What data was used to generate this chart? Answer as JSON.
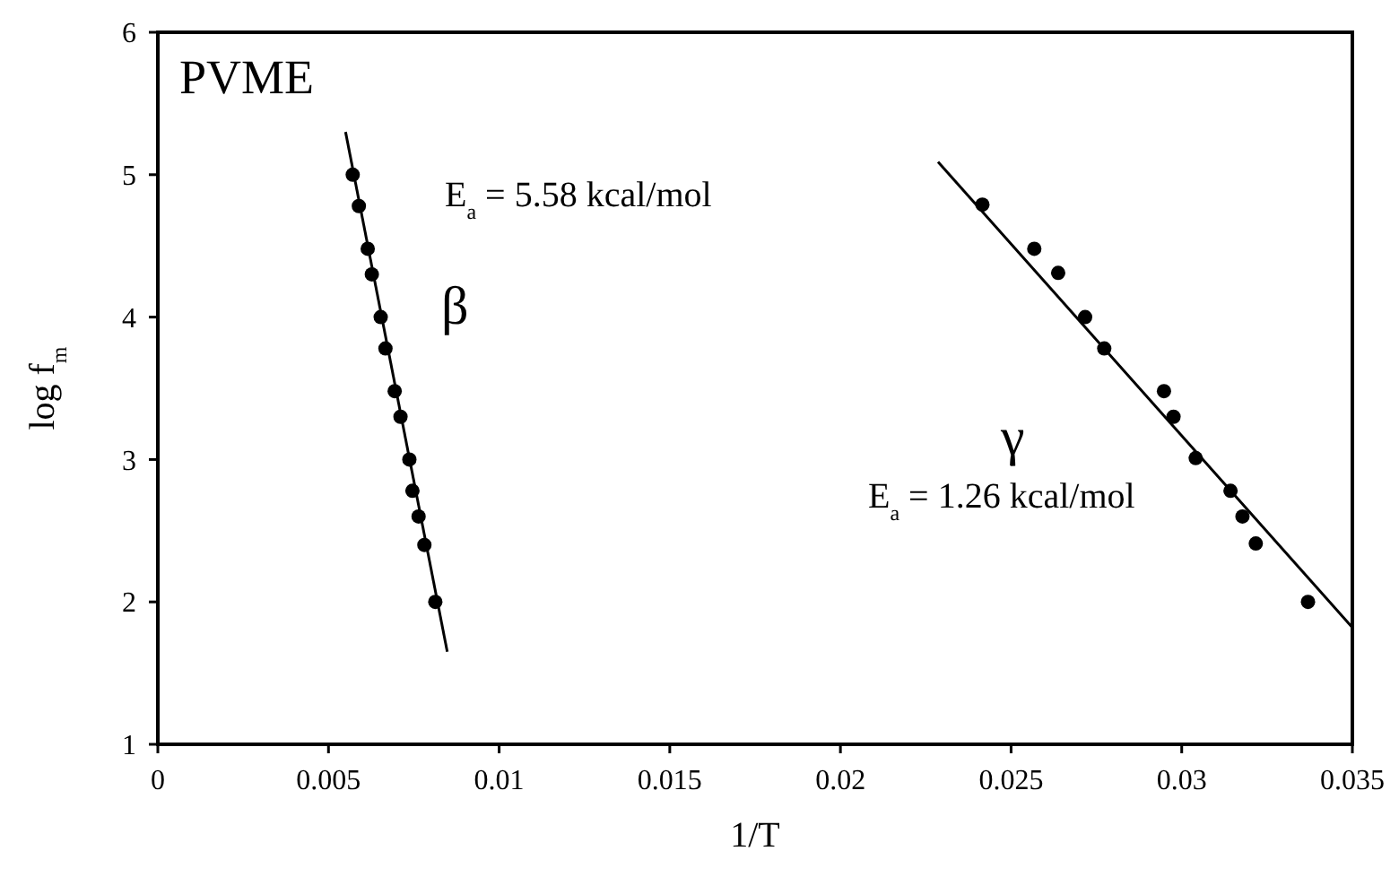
{
  "chart_data": {
    "type": "scatter",
    "title": "PVME",
    "xlabel": "1/T",
    "ylabel": "log f$_{m}$",
    "xlim": [
      0,
      0.035
    ],
    "ylim": [
      1,
      6
    ],
    "xticks": [
      0,
      0.005,
      0.01,
      0.015,
      0.02,
      0.025,
      0.03,
      0.035
    ],
    "yticks": [
      1,
      2,
      3,
      4,
      5,
      6
    ],
    "grid": false,
    "series": [
      {
        "marker": "circle",
        "color": "#000000",
        "x": [
          0.00571,
          0.00589,
          0.00615,
          0.00627,
          0.00653,
          0.00667,
          0.00694,
          0.00711,
          0.00737,
          0.00746,
          0.00764,
          0.00781,
          0.00813
        ],
        "values": [
          5.0,
          4.78,
          4.48,
          4.3,
          4.0,
          3.78,
          3.48,
          3.3,
          3.0,
          2.78,
          2.6,
          2.4,
          2.0
        ]
      },
      {
        "type": "line",
        "marker": "none",
        "color": "#000000",
        "line_style": "solid",
        "x": [
          0.0055,
          0.00848
        ],
        "values": [
          5.3,
          1.65
        ]
      },
      {
        "marker": "circle",
        "color": "#000000",
        "x": [
          0.02416,
          0.02568,
          0.02638,
          0.02717,
          0.02773,
          0.02948,
          0.02976,
          0.03041,
          0.03143,
          0.03178,
          0.03217,
          0.0337
        ],
        "values": [
          4.79,
          4.48,
          4.31,
          4.0,
          3.78,
          3.48,
          3.3,
          3.01,
          2.78,
          2.6,
          2.41,
          2.0
        ]
      },
      {
        "type": "line",
        "marker": "none",
        "color": "#000000",
        "line_style": "solid",
        "x": [
          0.02286,
          0.035
        ],
        "values": [
          5.09,
          1.82
        ]
      }
    ],
    "annotations": [
      "E$_{a}$ = 5.58 kcal/mol",
      "β",
      "γ",
      "E$_{a}$ = 1.26 kcal/mol"
    ]
  }
}
